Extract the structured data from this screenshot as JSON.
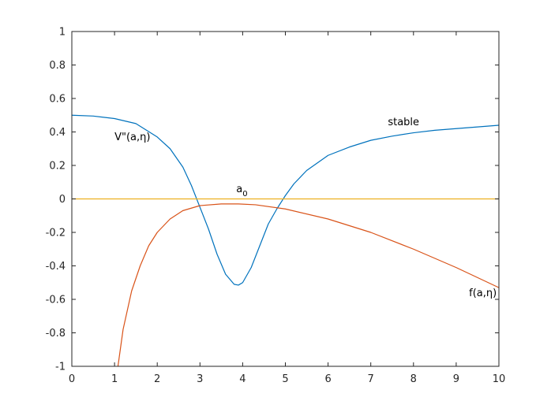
{
  "chart_data": {
    "type": "line",
    "title": "",
    "xlabel": "",
    "ylabel": "",
    "xlim": [
      0,
      10
    ],
    "ylim": [
      -1,
      1
    ],
    "grid": false,
    "legend": "none",
    "x_ticks": [
      0,
      1,
      2,
      3,
      4,
      5,
      6,
      7,
      8,
      9,
      10
    ],
    "x_tick_labels": [
      "0",
      "1",
      "2",
      "3",
      "4",
      "5",
      "6",
      "7",
      "8",
      "9",
      "10"
    ],
    "y_ticks": [
      1,
      0.8,
      0.6,
      0.4,
      0.2,
      0,
      -0.2,
      -0.4,
      -0.6,
      -0.8,
      -1
    ],
    "y_tick_labels": [
      "1",
      "0.8",
      "0.6",
      "0.4",
      "0.2",
      "0",
      "-0.2",
      "-0.4",
      "-0.6",
      "-0.8",
      "-1"
    ],
    "series": [
      {
        "color": "#0072BD",
        "x": [
          0,
          0.5,
          1,
          1.5,
          2,
          2.3,
          2.6,
          2.8,
          3.0,
          3.2,
          3.4,
          3.6,
          3.8,
          3.9,
          4.0,
          4.2,
          4.4,
          4.6,
          4.8,
          5.0,
          5.2,
          5.5,
          6,
          6.5,
          7,
          7.5,
          8,
          8.5,
          9,
          9.5,
          10
        ],
        "y": [
          0.5,
          0.495,
          0.48,
          0.45,
          0.37,
          0.3,
          0.19,
          0.08,
          -0.05,
          -0.18,
          -0.33,
          -0.45,
          -0.51,
          -0.515,
          -0.5,
          -0.41,
          -0.28,
          -0.15,
          -0.06,
          0.02,
          0.09,
          0.17,
          0.26,
          0.31,
          0.35,
          0.375,
          0.395,
          0.41,
          0.42,
          0.43,
          0.44
        ]
      },
      {
        "color": "#D95319",
        "x": [
          1.08,
          1.2,
          1.4,
          1.6,
          1.8,
          2.0,
          2.3,
          2.6,
          3.0,
          3.5,
          3.9,
          4.3,
          5,
          6,
          7,
          8,
          9,
          10
        ],
        "y": [
          -1.0,
          -0.78,
          -0.55,
          -0.4,
          -0.28,
          -0.2,
          -0.12,
          -0.07,
          -0.04,
          -0.03,
          -0.03,
          -0.035,
          -0.06,
          -0.12,
          -0.2,
          -0.3,
          -0.41,
          -0.53
        ]
      },
      {
        "color": "#EDB120",
        "x": [
          0,
          10
        ],
        "y": [
          0,
          0
        ]
      }
    ],
    "annotations": [
      {
        "text": "V\"(a,η)",
        "x": 1.0,
        "y": 0.35
      },
      {
        "text": "stable",
        "x": 7.4,
        "y": 0.44
      },
      {
        "text": "a",
        "sub": "0",
        "x": 3.85,
        "y": 0.04
      },
      {
        "text": "f(a,η)",
        "x": 9.3,
        "y": -0.58
      }
    ]
  }
}
